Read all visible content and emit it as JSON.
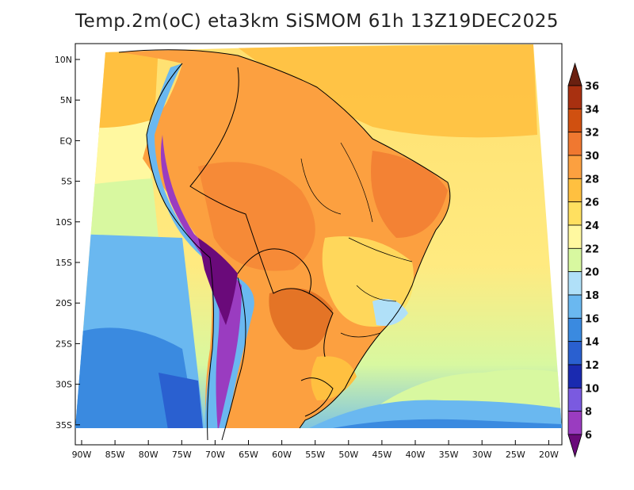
{
  "title": "Temp.2m(oC) eta3km SiSMOM 61h 13Z19DEC2025",
  "axes": {
    "lat_labels": [
      "10N",
      "5N",
      "EQ",
      "5S",
      "10S",
      "15S",
      "20S",
      "25S",
      "30S",
      "35S"
    ],
    "lon_labels": [
      "90W",
      "85W",
      "80W",
      "75W",
      "70W",
      "65W",
      "60W",
      "55W",
      "50W",
      "45W",
      "40W",
      "35W",
      "30W",
      "25W",
      "20W"
    ]
  },
  "colorbar": {
    "labels": [
      "6",
      "8",
      "10",
      "12",
      "14",
      "16",
      "18",
      "20",
      "22",
      "24",
      "26",
      "28",
      "30",
      "32",
      "34",
      "36"
    ],
    "colors": [
      "#6a0a7a",
      "#9a3cc0",
      "#7a5ae0",
      "#1a2ab0",
      "#2a60d0",
      "#3a8ae0",
      "#6ab8f0",
      "#b0e0f8",
      "#d8f8a0",
      "#fff8a0",
      "#ffe060",
      "#ffc040",
      "#fca040",
      "#f07830",
      "#d05010",
      "#a83010",
      "#6a2010"
    ]
  }
}
